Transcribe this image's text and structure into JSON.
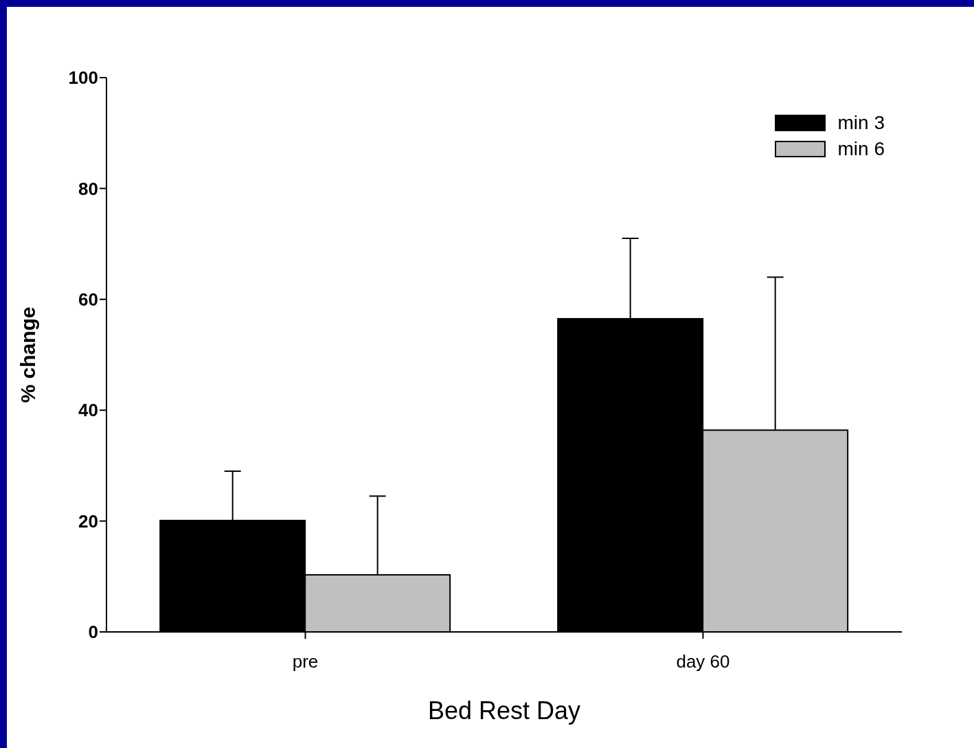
{
  "chart_data": {
    "type": "bar",
    "xlabel": "Bed Rest Day",
    "ylabel": "% change",
    "categories": [
      "pre",
      "day 60"
    ],
    "series": [
      {
        "name": "min 3",
        "color": "#000000",
        "values": [
          20.1,
          56.5
        ],
        "errors": [
          [
            20.1,
            29
          ],
          [
            56.5,
            71
          ]
        ]
      },
      {
        "name": "min 6",
        "color": "#c0c0c0",
        "values": [
          10.3,
          36.4
        ],
        "errors": [
          [
            10.3,
            24.5
          ],
          [
            36.4,
            64
          ]
        ]
      }
    ],
    "ylim": [
      0,
      100
    ],
    "yticks": [
      0,
      20,
      40,
      60,
      80,
      100
    ],
    "grid": false,
    "legend": "top right"
  }
}
